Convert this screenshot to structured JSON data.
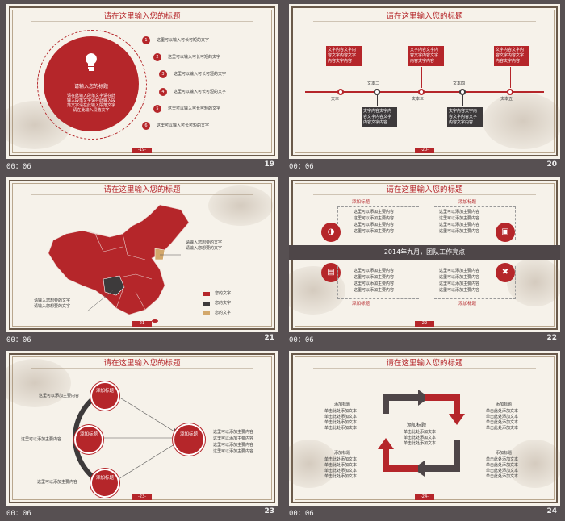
{
  "colors": {
    "accent": "#b5262a",
    "dark": "#3d3a3b",
    "gold": "#d3a86b",
    "bg": "#575052"
  },
  "slide_title": "请在这里输入您的标题",
  "timer": "00：06",
  "slides": [
    {
      "number": "19",
      "page": "-19-",
      "circle": {
        "heading": "请输入您的标题",
        "body": [
          "请在此输入段落文字请在此",
          "输入段落文字请在此输入段",
          "落文字请在此输入段落文字",
          "请在此输入段落文字"
        ]
      },
      "items": [
        {
          "n": "1",
          "text": "这里可以输入可长可短的文字"
        },
        {
          "n": "2",
          "text": "这里可以输入可长可短的文字"
        },
        {
          "n": "3",
          "text": "这里可以输入可长可短的文字"
        },
        {
          "n": "4",
          "text": "这里可以输入可长可短的文字"
        },
        {
          "n": "5",
          "text": "这里可以输入可长可短的文字"
        },
        {
          "n": "6",
          "text": "这里可以输入可长可短的文字"
        }
      ]
    },
    {
      "number": "20",
      "page": "-20-",
      "nodes": [
        "文本一",
        "文本二",
        "文本三",
        "文本四",
        "文本五"
      ],
      "box_lines": [
        "文字内容文字内",
        "容文字内容文字",
        "内容文字内容"
      ]
    },
    {
      "number": "21",
      "page": "-21-",
      "notes": [
        "请输入您想要的文字",
        "请输入您想要的文字"
      ],
      "legend": [
        "您的文字",
        "您的文字",
        "您的文字"
      ]
    },
    {
      "number": "22",
      "page": "-22-",
      "banner": "2014年九月，团队工作亮点",
      "heading": "添加标题",
      "line": "这里可以添加主要内容"
    },
    {
      "number": "23",
      "page": "-23-",
      "badges": [
        "添加标题",
        "添加标题",
        "添加标题"
      ],
      "target": "添加标题",
      "line": "这里可以添加主要内容"
    },
    {
      "number": "24",
      "page": "-24-",
      "center_title": "添加标题",
      "center_line": "单击此处添加文本",
      "heading": "添加标题",
      "line": "单击此处添加文本"
    }
  ]
}
